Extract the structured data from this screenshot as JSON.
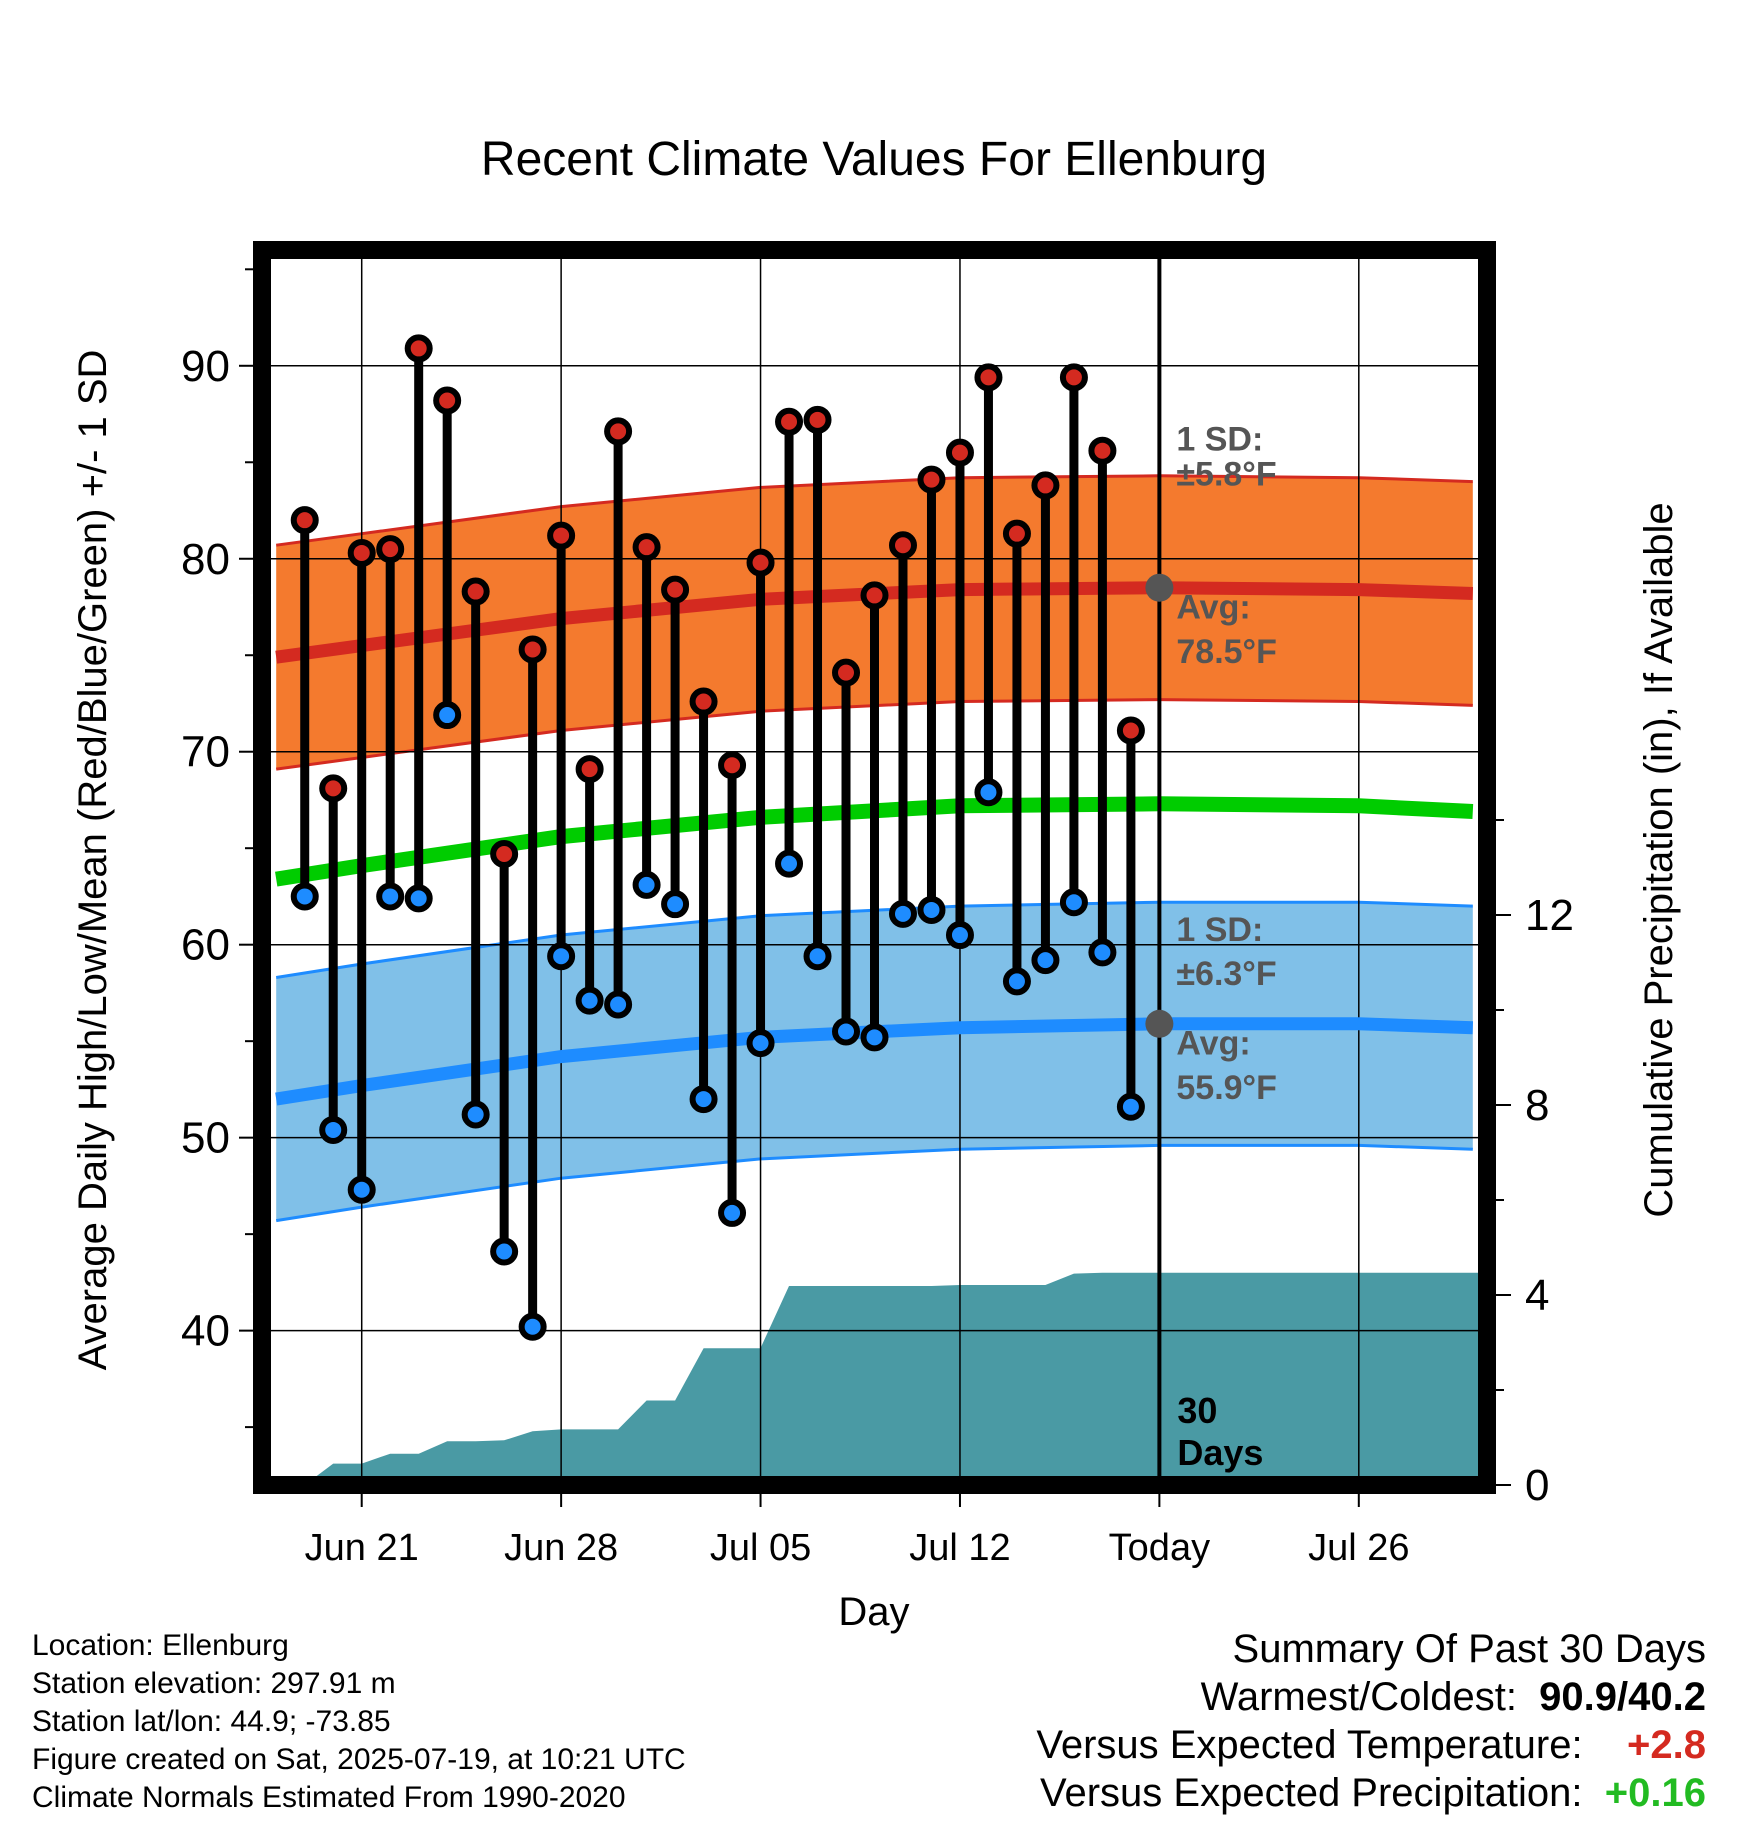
{
  "chart_data": {
    "type": "line",
    "title": "Recent Climate Values For Ellenburg",
    "xlabel": "Day",
    "ylabel": "Average Daily High/Low/Mean (Red/Blue/Green) +/- 1 SD",
    "y2label": "Cumulative Precipitation (in), If Available",
    "x_ticks": [
      "Jun 21",
      "Jun 28",
      "Jul 05",
      "Jul 12",
      "Today",
      "Jul 26"
    ],
    "y_ticks": [
      40,
      50,
      60,
      70,
      80,
      90
    ],
    "y2_ticks": [
      0,
      4,
      8,
      12
    ],
    "ylim": [
      32,
      96
    ],
    "y2lim": [
      0,
      26
    ],
    "grid": true,
    "x_days": [
      "Jun 19",
      "Jun 20",
      "Jun 21",
      "Jun 22",
      "Jun 23",
      "Jun 24",
      "Jun 25",
      "Jun 26",
      "Jun 27",
      "Jun 28",
      "Jun 29",
      "Jun 30",
      "Jul 01",
      "Jul 02",
      "Jul 03",
      "Jul 04",
      "Jul 05",
      "Jul 06",
      "Jul 07",
      "Jul 08",
      "Jul 09",
      "Jul 10",
      "Jul 11",
      "Jul 12",
      "Jul 13",
      "Jul 14",
      "Jul 15",
      "Jul 16",
      "Jul 17",
      "Jul 18"
    ],
    "daily_high": [
      82.0,
      68.1,
      80.3,
      80.5,
      90.9,
      88.2,
      78.3,
      64.7,
      75.3,
      81.2,
      69.1,
      86.6,
      80.6,
      78.4,
      72.6,
      69.3,
      79.8,
      87.1,
      87.2,
      74.1,
      78.1,
      80.7,
      84.1,
      85.5,
      89.4,
      81.3,
      83.8,
      89.4,
      85.6,
      71.1
    ],
    "daily_low": [
      62.5,
      50.4,
      47.3,
      62.5,
      62.4,
      71.9,
      51.2,
      44.1,
      40.2,
      59.4,
      57.1,
      56.9,
      63.1,
      62.1,
      52.0,
      46.1,
      54.9,
      64.2,
      59.4,
      55.5,
      55.2,
      61.6,
      61.8,
      60.5,
      67.9,
      58.1,
      59.2,
      62.2,
      59.6,
      51.6
    ],
    "normal_days": [
      "Jun 18",
      "Jun 21",
      "Jun 28",
      "Jul 05",
      "Jul 12",
      "Today",
      "Jul 26",
      "Jul 30"
    ],
    "normal_high_avg": [
      74.9,
      75.5,
      76.9,
      77.9,
      78.4,
      78.5,
      78.4,
      78.2
    ],
    "normal_low_avg": [
      52.0,
      52.7,
      54.2,
      55.2,
      55.7,
      55.9,
      55.9,
      55.7
    ],
    "normal_mean": [
      63.4,
      64.1,
      65.6,
      66.6,
      67.2,
      67.3,
      67.2,
      66.9
    ],
    "high_sd": 5.8,
    "low_sd": 6.3,
    "precip_days": [
      "Jun 19",
      "Jun 20",
      "Jun 21",
      "Jun 22",
      "Jun 23",
      "Jun 24",
      "Jun 25",
      "Jun 26",
      "Jun 27",
      "Jun 28",
      "Jun 29",
      "Jun 30",
      "Jul 01",
      "Jul 02",
      "Jul 03",
      "Jul 04",
      "Jul 05",
      "Jul 06",
      "Jul 07",
      "Jul 08",
      "Jul 09",
      "Jul 10",
      "Jul 11",
      "Jul 12",
      "Jul 13",
      "Jul 14",
      "Jul 15",
      "Jul 16",
      "Jul 17",
      "Jul 18",
      "Jul 30"
    ],
    "cumulative_precip": [
      0.0,
      0.45,
      0.45,
      0.66,
      0.66,
      0.92,
      0.92,
      0.94,
      1.13,
      1.17,
      1.17,
      1.17,
      1.78,
      1.78,
      2.88,
      2.88,
      2.88,
      4.19,
      4.19,
      4.19,
      4.19,
      4.19,
      4.19,
      4.21,
      4.21,
      4.21,
      4.21,
      4.45,
      4.47,
      4.47,
      4.47
    ],
    "annotations": {
      "high_sd_label": "1 SD:",
      "high_sd_value": "±5.8°F",
      "high_avg_label": "Avg:",
      "high_avg_value": "78.5°F",
      "low_sd_label": "1 SD:",
      "low_sd_value": "±6.3°F",
      "low_avg_label": "Avg:",
      "low_avg_value": "55.9°F",
      "window_label_1": "30",
      "window_label_2": "Days"
    },
    "colors": {
      "high_band": "#f47a2e",
      "high_line": "#d42a20",
      "low_band": "#80c0e8",
      "low_line": "#1e8cff",
      "mean_line": "#00cc00",
      "precip": "#4a9aa4",
      "high_dot": "#d42a20",
      "low_dot": "#1e8cff",
      "annotation": "#555555"
    }
  },
  "info": {
    "location": "Location: Ellenburg",
    "elevation": "Station elevation: 297.91 m",
    "latlon": "Station lat/lon: 44.9; -73.85",
    "created": "Figure created on Sat, 2025-07-19, at 10:21 UTC",
    "normals": "Climate Normals Estimated From 1990-2020"
  },
  "summary": {
    "title": "Summary Of Past 30 Days",
    "warmest_label": "Warmest/Coldest:",
    "warmest_value": "90.9/40.2",
    "temp_label": "Versus Expected Temperature:",
    "temp_value": "+2.8",
    "temp_color": "#d42a20",
    "precip_label": "Versus Expected Precipitation:",
    "precip_value": "+0.16",
    "precip_color": "#22bb22"
  }
}
